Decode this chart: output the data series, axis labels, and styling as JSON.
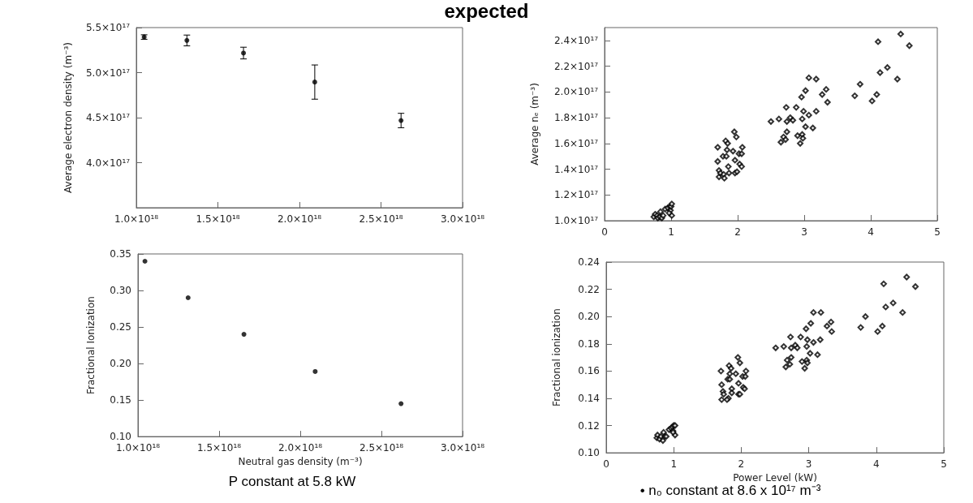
{
  "chart_data": [
    {
      "type": "scatter",
      "title": "expected",
      "ylabel": "Average electron density (m⁻³)",
      "marker": "circle",
      "color": "#000000",
      "x": [
        1.048e+18,
        1.31e+18,
        1.657e+18,
        2.094e+18,
        2.623e+18
      ],
      "values": [
        5.395e+17,
        5.357e+17,
        5.217e+17,
        4.895e+17,
        4.468e+17
      ],
      "errors": [
        2500000000000000.0,
        6000000000000000.0,
        6500000000000000.0,
        1.9e+16,
        8000000000000000.0
      ],
      "xlim": [
        1e+18,
        3e+18
      ],
      "xticks": [
        {
          "value": 1e+18,
          "label": "1.0×10¹⁸"
        },
        {
          "value": 1.5e+18,
          "label": "1.5×10¹⁸"
        },
        {
          "value": 2e+18,
          "label": "2.0×10¹⁸"
        },
        {
          "value": 2.5e+18,
          "label": "2.5×10¹⁸"
        },
        {
          "value": 3e+18,
          "label": "3.0×10¹⁸"
        }
      ],
      "ylim": [
        3.5e+17,
        5.5e+17
      ],
      "yticks": [
        {
          "value": 4e+17,
          "label": "4.0×10¹⁷"
        },
        {
          "value": 4.5e+17,
          "label": "4.5×10¹⁷"
        },
        {
          "value": 5e+17,
          "label": "5.0×10¹⁷"
        },
        {
          "value": 5.5e+17,
          "label": "5.5×10¹⁷"
        }
      ]
    },
    {
      "type": "scatter",
      "xlabel": "Neutral gas density (m⁻³)",
      "ylabel": "Fractional Ionization",
      "marker": "circle",
      "color": "#000000",
      "annotations": [
        "P constant at 5.8 kW"
      ],
      "x": [
        1.043e+18,
        1.309e+18,
        1.653e+18,
        2.092e+18,
        2.621e+18
      ],
      "values": [
        0.34,
        0.29,
        0.24,
        0.189,
        0.145
      ],
      "xlim": [
        1e+18,
        3e+18
      ],
      "xticks": [
        {
          "value": 1e+18,
          "label": "1.0×10¹⁸"
        },
        {
          "value": 1.5e+18,
          "label": "1.5×10¹⁸"
        },
        {
          "value": 2e+18,
          "label": "2.0×10¹⁸"
        },
        {
          "value": 2.5e+18,
          "label": "2.5×10¹⁸"
        },
        {
          "value": 3e+18,
          "label": "3.0×10¹⁸"
        }
      ],
      "ylim": [
        0.1,
        0.35
      ],
      "yticks": [
        {
          "value": 0.1,
          "label": "0.10"
        },
        0.15,
        {
          "value": 0.2,
          "label": "0.20"
        },
        0.25,
        {
          "value": 0.3,
          "label": "0.30"
        },
        0.35
      ]
    },
    {
      "type": "scatter",
      "ylabel": "Average nₑ (m⁻³)",
      "marker": "diamond",
      "color": "#000000",
      "x": [
        3.76,
        3.84,
        4.02,
        4.09,
        4.11,
        4.14,
        4.25,
        4.4,
        4.45,
        4.58,
        2.5,
        2.62,
        2.73,
        2.74,
        2.79,
        2.83,
        2.88,
        2.96,
        2.97,
        2.99,
        3.02,
        3.07,
        3.07,
        3.18,
        3.18,
        3.27,
        3.33,
        3.35,
        2.65,
        2.69,
        2.72,
        2.74,
        2.9,
        2.94,
        2.97,
        2.98,
        3.02,
        3.13,
        1.7,
        1.7,
        1.72,
        1.72,
        1.74,
        1.78,
        1.79,
        1.8,
        1.82,
        1.83,
        1.84,
        1.85,
        1.86,
        1.87,
        1.93,
        1.95,
        1.96,
        1.96,
        1.98,
        1.99,
        2.02,
        2.03,
        2.06,
        2.06,
        2.07,
        0.74,
        0.76,
        0.79,
        0.8,
        0.83,
        0.84,
        0.86,
        0.88,
        0.91,
        0.95,
        0.98,
        0.99,
        1.0,
        1.01,
        1.01,
        0.97
      ],
      "values": [
        1.97e+17,
        2.06e+17,
        1.93e+17,
        1.98e+17,
        2.39e+17,
        2.15e+17,
        2.19e+17,
        2.1e+17,
        2.45e+17,
        2.36e+17,
        1.77e+17,
        1.79e+17,
        1.88e+17,
        1.77e+17,
        1.8e+17,
        1.78e+17,
        1.88e+17,
        1.96e+17,
        1.79e+17,
        1.85e+17,
        2.01e+17,
        1.82e+17,
        2.11e+17,
        2.1e+17,
        1.85e+17,
        1.98e+17,
        2.02e+17,
        1.92e+17,
        1.61e+17,
        1.65e+17,
        1.63e+17,
        1.69e+17,
        1.66e+17,
        1.6e+17,
        1.67e+17,
        1.64e+17,
        1.73e+17,
        1.72e+17,
        1.57e+17,
        1.46e+17,
        1.39e+17,
        1.34e+17,
        1.37e+17,
        1.5e+17,
        1.36e+17,
        1.33e+17,
        1.62e+17,
        1.5e+17,
        1.55e+17,
        1.6e+17,
        1.42e+17,
        1.37e+17,
        1.54e+17,
        1.69e+17,
        1.47e+17,
        1.37e+17,
        1.65e+17,
        1.38e+17,
        1.52e+17,
        1.44e+17,
        1.52e+17,
        1.42e+17,
        1.57e+17,
        1.03e+17,
        1.05e+17,
        1.04e+17,
        1.02e+17,
        1.03e+17,
        1.07e+17,
        1.02e+17,
        1.04e+17,
        1.09e+17,
        1.1e+17,
        1.11e+17,
        1.08e+17,
        1.11e+17,
        1.13e+17,
        1.04e+17,
        1.06e+17
      ],
      "xlim": [
        0,
        5
      ],
      "xticks": [
        0,
        1,
        2,
        3,
        4,
        5
      ],
      "ylim": [
        1e+17,
        2.5e+17
      ],
      "yticks": [
        {
          "value": 1e+17,
          "label": "1.0×10¹⁷"
        },
        {
          "value": 1.2e+17,
          "label": "1.2×10¹⁷"
        },
        {
          "value": 1.4e+17,
          "label": "1.4×10¹⁷"
        },
        {
          "value": 1.6e+17,
          "label": "1.6×10¹⁷"
        },
        {
          "value": 1.8e+17,
          "label": "1.8×10¹⁷"
        },
        {
          "value": 2e+17,
          "label": "2.0×10¹⁷"
        },
        {
          "value": 2.2e+17,
          "label": "2.2×10¹⁷"
        },
        {
          "value": 2.4e+17,
          "label": "2.4×10¹⁷"
        }
      ]
    },
    {
      "type": "scatter",
      "xlabel": "Power Level (kW)",
      "ylabel": "Fractional ionization",
      "marker": "diamond",
      "color": "#000000",
      "annotations": [
        "• n₀ constant at 8.6 x 10¹⁷ m⁻³"
      ],
      "x": [
        3.77,
        3.84,
        4.02,
        4.09,
        4.11,
        4.14,
        4.25,
        4.39,
        4.45,
        4.58,
        2.51,
        2.63,
        2.73,
        2.74,
        2.8,
        2.83,
        2.88,
        2.96,
        2.97,
        2.98,
        3.03,
        3.07,
        3.07,
        3.18,
        3.17,
        3.27,
        3.33,
        3.34,
        2.66,
        2.68,
        2.72,
        2.74,
        2.9,
        2.94,
        2.97,
        2.98,
        3.02,
        3.13,
        1.7,
        1.71,
        1.73,
        1.71,
        1.74,
        1.8,
        1.81,
        1.79,
        1.82,
        1.83,
        1.83,
        1.85,
        1.86,
        1.86,
        1.92,
        1.95,
        1.96,
        1.96,
        1.98,
        1.98,
        2.02,
        2.03,
        2.06,
        2.05,
        2.07,
        0.75,
        0.76,
        0.79,
        0.81,
        0.84,
        0.85,
        0.87,
        0.89,
        0.93,
        0.96,
        0.98,
        0.99,
        1.0,
        1.02,
        1.02,
        0.99
      ],
      "values": [
        0.192,
        0.2,
        0.189,
        0.193,
        0.224,
        0.207,
        0.21,
        0.203,
        0.229,
        0.222,
        0.177,
        0.178,
        0.185,
        0.177,
        0.179,
        0.177,
        0.185,
        0.191,
        0.178,
        0.183,
        0.195,
        0.181,
        0.203,
        0.203,
        0.183,
        0.193,
        0.196,
        0.189,
        0.163,
        0.168,
        0.165,
        0.17,
        0.167,
        0.162,
        0.168,
        0.166,
        0.173,
        0.172,
        0.16,
        0.15,
        0.145,
        0.139,
        0.143,
        0.154,
        0.14,
        0.139,
        0.164,
        0.154,
        0.158,
        0.162,
        0.147,
        0.144,
        0.158,
        0.17,
        0.151,
        0.143,
        0.166,
        0.143,
        0.156,
        0.148,
        0.156,
        0.147,
        0.16,
        0.111,
        0.113,
        0.11,
        0.112,
        0.109,
        0.115,
        0.112,
        0.112,
        0.117,
        0.118,
        0.119,
        0.116,
        0.12,
        0.12,
        0.113,
        0.115
      ],
      "xlim": [
        0,
        5
      ],
      "xticks": [
        0,
        1,
        2,
        3,
        4,
        5
      ],
      "ylim": [
        0.1,
        0.24
      ],
      "yticks": [
        {
          "value": 0.1,
          "label": "0.10"
        },
        0.12,
        0.14,
        0.16,
        0.18,
        {
          "value": 0.2,
          "label": "0.20"
        },
        0.22,
        0.24
      ]
    }
  ]
}
